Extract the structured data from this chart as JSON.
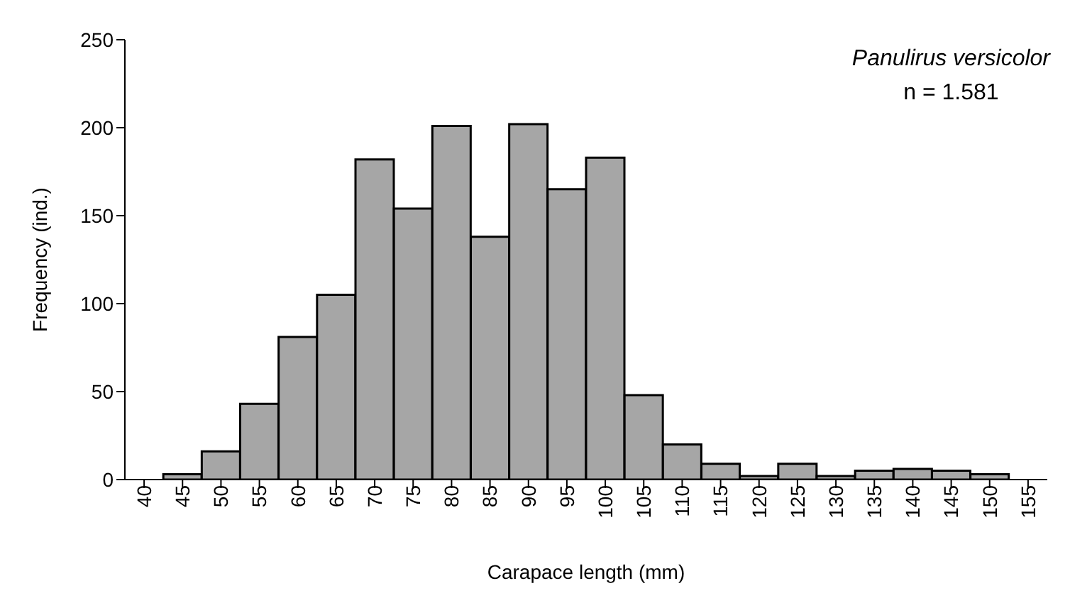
{
  "chart_data": {
    "type": "bar",
    "xlabel": "Carapace length (mm)",
    "ylabel": "Frequency (ind.)",
    "categories": [
      "40",
      "45",
      "50",
      "55",
      "60",
      "65",
      "70",
      "75",
      "80",
      "85",
      "90",
      "95",
      "100",
      "105",
      "110",
      "115",
      "120",
      "125",
      "130",
      "135",
      "140",
      "145",
      "150",
      "155"
    ],
    "values": [
      0,
      3,
      16,
      43,
      81,
      105,
      182,
      154,
      201,
      138,
      202,
      165,
      183,
      48,
      20,
      9,
      2,
      9,
      2,
      5,
      6,
      5,
      3,
      0
    ],
    "color": "#a6a6a6",
    "ylim": [
      0,
      250
    ],
    "yticks": [
      0,
      50,
      100,
      150,
      200,
      250
    ],
    "grid": false,
    "legend": false,
    "annotations": [
      "Panulirus versicolor",
      "n = 1.581"
    ]
  }
}
